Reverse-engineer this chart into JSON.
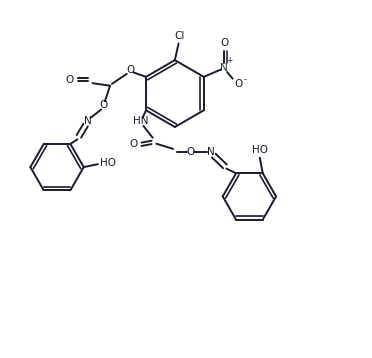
{
  "background": "#ffffff",
  "line_color": "#1a1a2e",
  "text_color": "#1a1a2e",
  "bond_lw": 1.4,
  "figsize": [
    3.72,
    3.58
  ],
  "dpi": 100,
  "xlim": [
    0,
    10
  ],
  "ylim": [
    0,
    9.6
  ]
}
